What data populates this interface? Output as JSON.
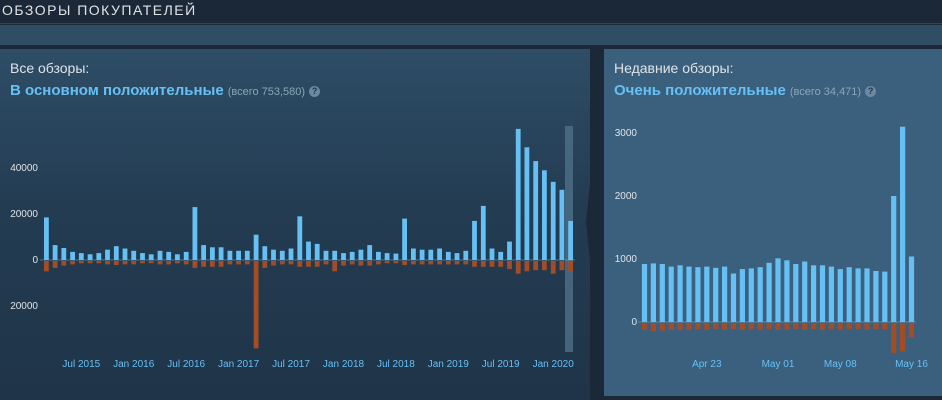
{
  "header": {
    "title": "ОБЗОРЫ ПОКУПАТЕЛЕЙ"
  },
  "all_reviews": {
    "label": "Все обзоры:",
    "rating": "В основном положительные",
    "count_text": "(всего 753,580)",
    "help_icon": "?"
  },
  "recent_reviews": {
    "label": "Недавние обзоры:",
    "rating": "Очень положительные",
    "count_text": "(всего 34,471)",
    "help_icon": "?"
  },
  "colors": {
    "positive": "#66c0f4",
    "negative": "#a34c25",
    "text": "#dfe3e6",
    "accent": "#66c0f4"
  },
  "chart_data": [
    {
      "type": "bar",
      "title": "",
      "y_tick_labels": [
        "40000",
        "20000",
        "0",
        "20000"
      ],
      "y_ticks": [
        40000,
        20000,
        0,
        -20000
      ],
      "ylim": [
        -40000,
        58000
      ],
      "x_tick_labels": [
        "Jul 2015",
        "Jan 2016",
        "Jul 2016",
        "Jan 2017",
        "Jul 2017",
        "Jan 2018",
        "Jul 2018",
        "Jan 2019",
        "Jul 2019",
        "Jan 2020"
      ],
      "x_tick_positions": [
        4,
        10,
        16,
        22,
        28,
        34,
        40,
        46,
        52,
        58
      ],
      "series": [
        {
          "values": [
            18500,
            6500,
            5200,
            3500,
            3000,
            2500,
            3000,
            4500,
            6000,
            5000,
            4000,
            3000,
            2500,
            4000,
            3500,
            2500,
            3500,
            23000,
            6500,
            5500,
            5500,
            4000,
            4000,
            4000,
            11000,
            6000,
            4500,
            4000,
            5000,
            19000,
            8000,
            7000,
            4000,
            4000,
            3000,
            3500,
            4500,
            6500,
            3500,
            3000,
            2800,
            18000,
            5000,
            4500,
            4500,
            5000,
            3500,
            3000,
            4000,
            17000,
            23500,
            5000,
            3500,
            8000,
            57000,
            49000,
            43000,
            39000,
            34000,
            30500,
            17000
          ]
        },
        {
          "values": [
            -4500,
            -3000,
            -2000,
            -1500,
            -1000,
            -1000,
            -1000,
            -1500,
            -1800,
            -1500,
            -1500,
            -1000,
            -1000,
            -1500,
            -1500,
            -1000,
            -1500,
            -3000,
            -2500,
            -2500,
            -2500,
            -1500,
            -1500,
            -1500,
            -38000,
            -3000,
            -2000,
            -1500,
            -1500,
            -2500,
            -2500,
            -2500,
            -1500,
            -4500,
            -2000,
            -1500,
            -2000,
            -2000,
            -1500,
            -1000,
            -1000,
            -1800,
            -1500,
            -1500,
            -1500,
            -1500,
            -1500,
            -1500,
            -1500,
            -2500,
            -2500,
            -2500,
            -2500,
            -3500,
            -5500,
            -4500,
            -4000,
            -4000,
            -5500,
            -4000,
            -4500
          ]
        }
      ]
    },
    {
      "type": "bar",
      "title": "",
      "y_tick_labels": [
        "3000",
        "2000",
        "1000",
        "0"
      ],
      "y_ticks": [
        3000,
        2000,
        1000,
        0
      ],
      "ylim": [
        -500,
        3200
      ],
      "x_tick_labels": [
        "Apr 23",
        "May 01",
        "May 08",
        "May 16"
      ],
      "x_tick_positions": [
        7,
        15,
        22,
        30
      ],
      "series": [
        {
          "values": [
            920,
            930,
            920,
            880,
            900,
            880,
            870,
            880,
            860,
            880,
            770,
            840,
            850,
            870,
            940,
            1010,
            980,
            920,
            960,
            900,
            900,
            880,
            840,
            870,
            850,
            850,
            810,
            800,
            2000,
            3100,
            1040
          ]
        },
        {
          "values": [
            -110,
            -130,
            -120,
            -110,
            -110,
            -110,
            -100,
            -110,
            -100,
            -110,
            -100,
            -110,
            -100,
            -110,
            -100,
            -110,
            -110,
            -100,
            -110,
            -100,
            -110,
            -100,
            -110,
            -100,
            -100,
            -110,
            -100,
            -100,
            -480,
            -450,
            -230
          ]
        }
      ]
    }
  ]
}
